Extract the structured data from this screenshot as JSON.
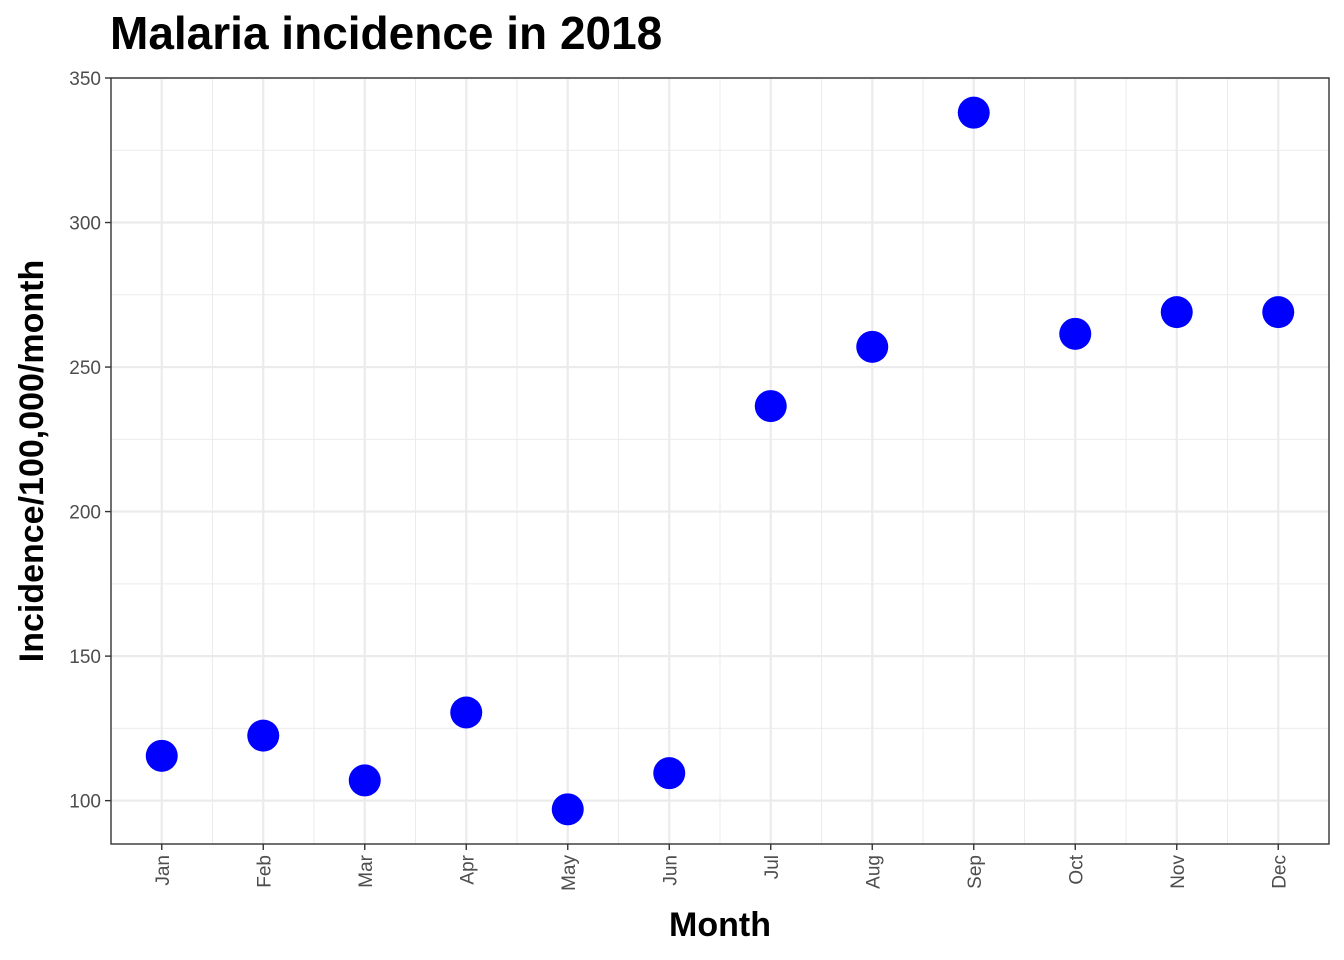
{
  "chart_data": {
    "type": "scatter",
    "title": "Malaria incidence in 2018",
    "xlabel": "Month",
    "ylabel": "Incidence/100,000/month",
    "categories": [
      "Jan",
      "Feb",
      "Mar",
      "Apr",
      "May",
      "Jun",
      "Jul",
      "Aug",
      "Sep",
      "Oct",
      "Nov",
      "Dec"
    ],
    "values": [
      115.5,
      122.5,
      107,
      130.5,
      97,
      109.5,
      236.5,
      257,
      338,
      261.5,
      269,
      269
    ],
    "ylim": [
      85,
      350
    ],
    "yticks": [
      100,
      150,
      200,
      250,
      300,
      350
    ],
    "grid": true,
    "point_color": "#0000ff"
  }
}
